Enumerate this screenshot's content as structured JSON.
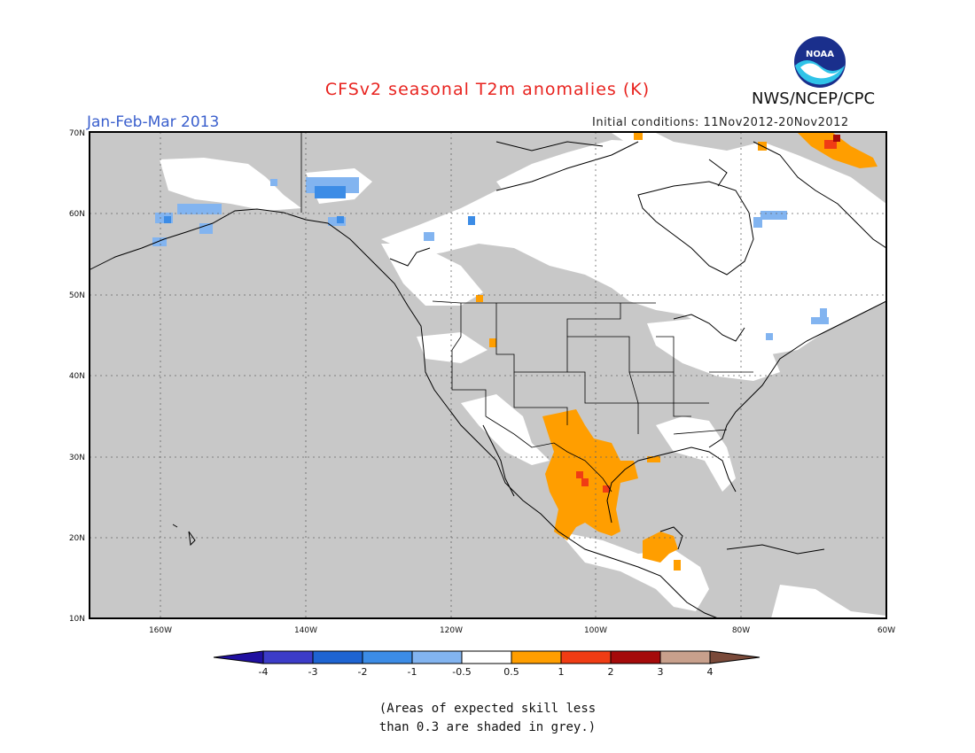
{
  "header": {
    "title": "CFSv2 seasonal T2m anomalies (K)",
    "season": "Jan-Feb-Mar 2013",
    "initial_conditions": "Initial conditions: 11Nov2012-20Nov2012",
    "agency": "NWS/NCEP/CPC",
    "logo_text": "NOAA"
  },
  "map": {
    "lat_ticks": [
      "70N",
      "60N",
      "50N",
      "40N",
      "30N",
      "20N",
      "10N"
    ],
    "lon_ticks": [
      "160W",
      "140W",
      "120W",
      "100W",
      "80W",
      "60W"
    ],
    "ocean_color": "#c8c8c8",
    "land_color": "#ffffff"
  },
  "legend": {
    "labels": [
      "-4",
      "-3",
      "-2",
      "-1",
      "-0.5",
      "0.5",
      "1",
      "2",
      "3",
      "4"
    ],
    "colors": [
      "#2010a0",
      "#3c3cc8",
      "#1e64d2",
      "#3c8ce6",
      "#82b4f0",
      "#ffffff",
      "#ff9e00",
      "#f03c14",
      "#a50a0a",
      "#c8a08c",
      "#7a4a3a"
    ]
  },
  "note": {
    "line1": "(Areas of expected skill less",
    "line2": "than 0.3 are shaded in grey.)"
  }
}
